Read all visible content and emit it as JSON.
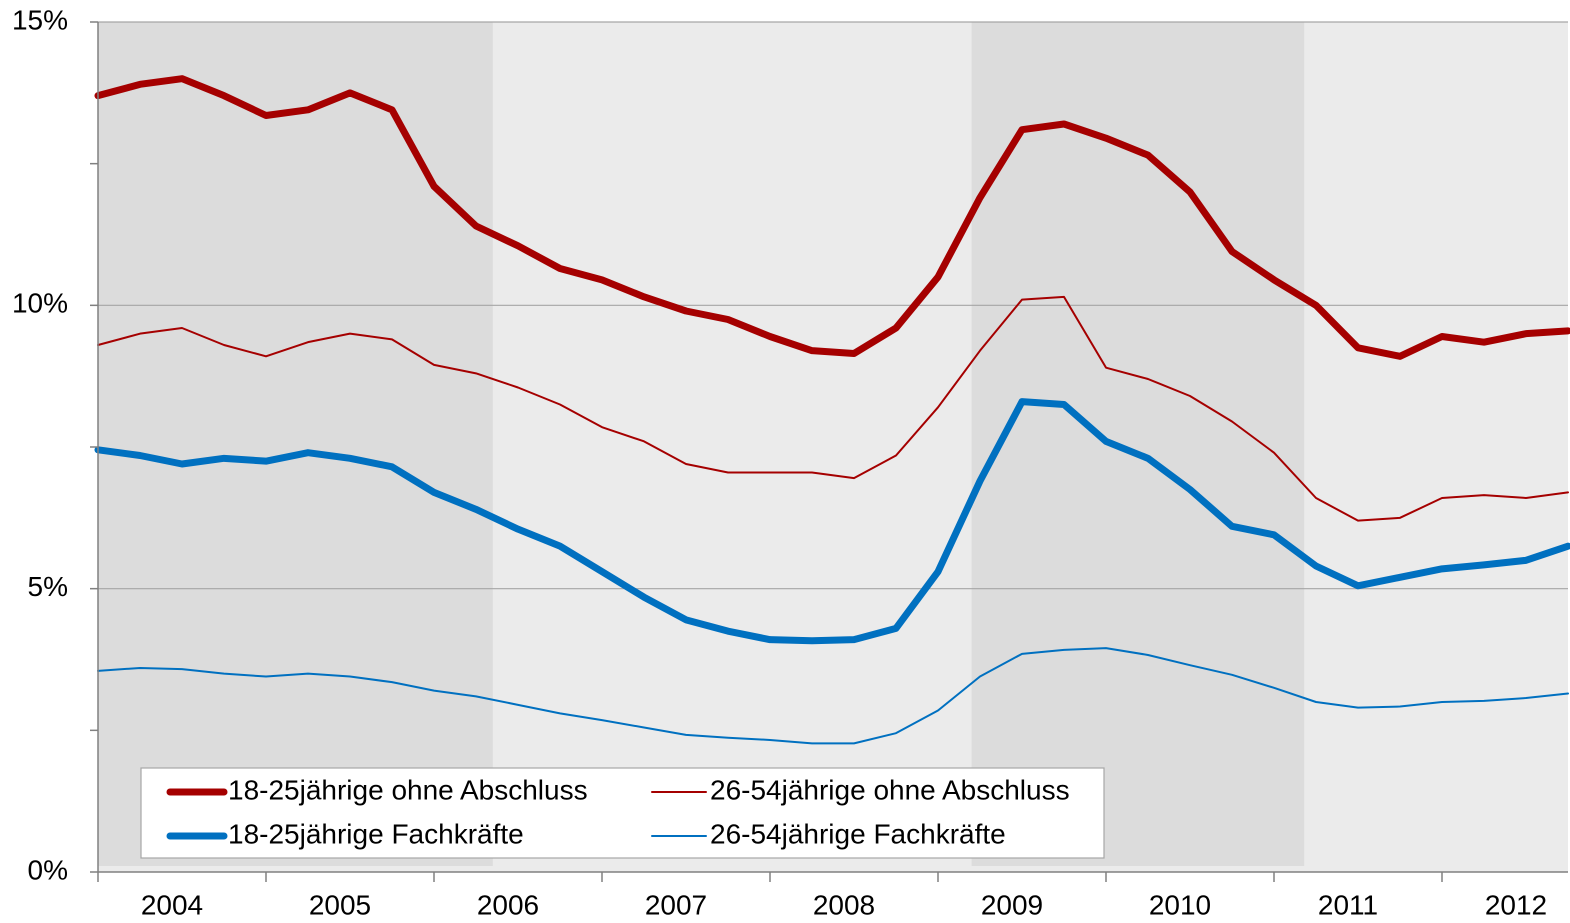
{
  "chart_data": {
    "type": "line",
    "x": [
      2004,
      2004.25,
      2004.5,
      2004.75,
      2005,
      2005.25,
      2005.5,
      2005.75,
      2006,
      2006.25,
      2006.5,
      2006.75,
      2007,
      2007.25,
      2007.5,
      2007.75,
      2008,
      2008.25,
      2008.5,
      2008.75,
      2009,
      2009.25,
      2009.5,
      2009.75,
      2010,
      2010.25,
      2010.5,
      2010.75,
      2011,
      2011.25,
      2011.5,
      2011.75,
      2012,
      2012.25,
      2012.5,
      2012.75
    ],
    "series": [
      {
        "name": "18-25jährige ohne Abschluss",
        "color": "#a50000",
        "width": 7,
        "values": [
          13.7,
          13.9,
          14.0,
          13.7,
          13.35,
          13.45,
          13.75,
          13.45,
          12.1,
          11.4,
          11.05,
          10.65,
          10.45,
          10.15,
          9.9,
          9.75,
          9.45,
          9.2,
          9.15,
          9.6,
          10.5,
          11.9,
          13.1,
          13.2,
          12.95,
          12.65,
          12.0,
          10.95,
          10.45,
          10.0,
          9.25,
          9.1,
          9.45,
          9.35,
          9.5,
          9.55
        ]
      },
      {
        "name": "26-54jährige ohne Abschluss",
        "color": "#a50000",
        "width": 2,
        "values": [
          9.3,
          9.5,
          9.6,
          9.3,
          9.1,
          9.35,
          9.5,
          9.4,
          8.95,
          8.8,
          8.55,
          8.25,
          7.85,
          7.6,
          7.2,
          7.05,
          7.05,
          7.05,
          6.95,
          7.35,
          8.2,
          9.2,
          10.1,
          10.15,
          8.9,
          8.7,
          8.4,
          7.95,
          7.4,
          6.6,
          6.2,
          6.25,
          6.6,
          6.65,
          6.6,
          6.7
        ]
      },
      {
        "name": "18-25jährige Fachkräfte",
        "color": "#0070c0",
        "width": 7,
        "values": [
          7.45,
          7.35,
          7.2,
          7.3,
          7.25,
          7.4,
          7.3,
          7.15,
          6.7,
          6.4,
          6.05,
          5.75,
          5.3,
          4.85,
          4.45,
          4.25,
          4.1,
          4.08,
          4.1,
          4.3,
          5.3,
          6.9,
          8.3,
          8.25,
          7.6,
          7.3,
          6.75,
          6.1,
          5.95,
          5.4,
          5.05,
          5.2,
          5.35,
          5.42,
          5.5,
          5.75
        ]
      },
      {
        "name": "26-54jährige Fachkräfte",
        "color": "#0070c0",
        "width": 2,
        "values": [
          3.55,
          3.6,
          3.58,
          3.5,
          3.45,
          3.5,
          3.45,
          3.35,
          3.2,
          3.1,
          2.95,
          2.8,
          2.68,
          2.55,
          2.42,
          2.37,
          2.33,
          2.27,
          2.27,
          2.45,
          2.85,
          3.45,
          3.85,
          3.92,
          3.95,
          3.83,
          3.65,
          3.48,
          3.25,
          3.0,
          2.9,
          2.92,
          3.0,
          3.02,
          3.07,
          3.15
        ]
      }
    ],
    "xlim": [
      2004,
      2012.75
    ],
    "xticks": [
      2004,
      2005,
      2006,
      2007,
      2008,
      2009,
      2010,
      2011,
      2012
    ],
    "ylim": [
      0,
      15
    ],
    "yticks": [
      {
        "value": 0,
        "label": "0%"
      },
      {
        "value": 5,
        "label": "5%"
      },
      {
        "value": 10,
        "label": "10%"
      },
      {
        "value": 15,
        "label": "15%"
      }
    ],
    "yminor_ticks": [
      2.5,
      7.5,
      12.5
    ],
    "grid": true,
    "shaded_ranges": [
      [
        2004,
        2006.35
      ],
      [
        2009.2,
        2011.18
      ]
    ],
    "legend": "bottom-left"
  }
}
